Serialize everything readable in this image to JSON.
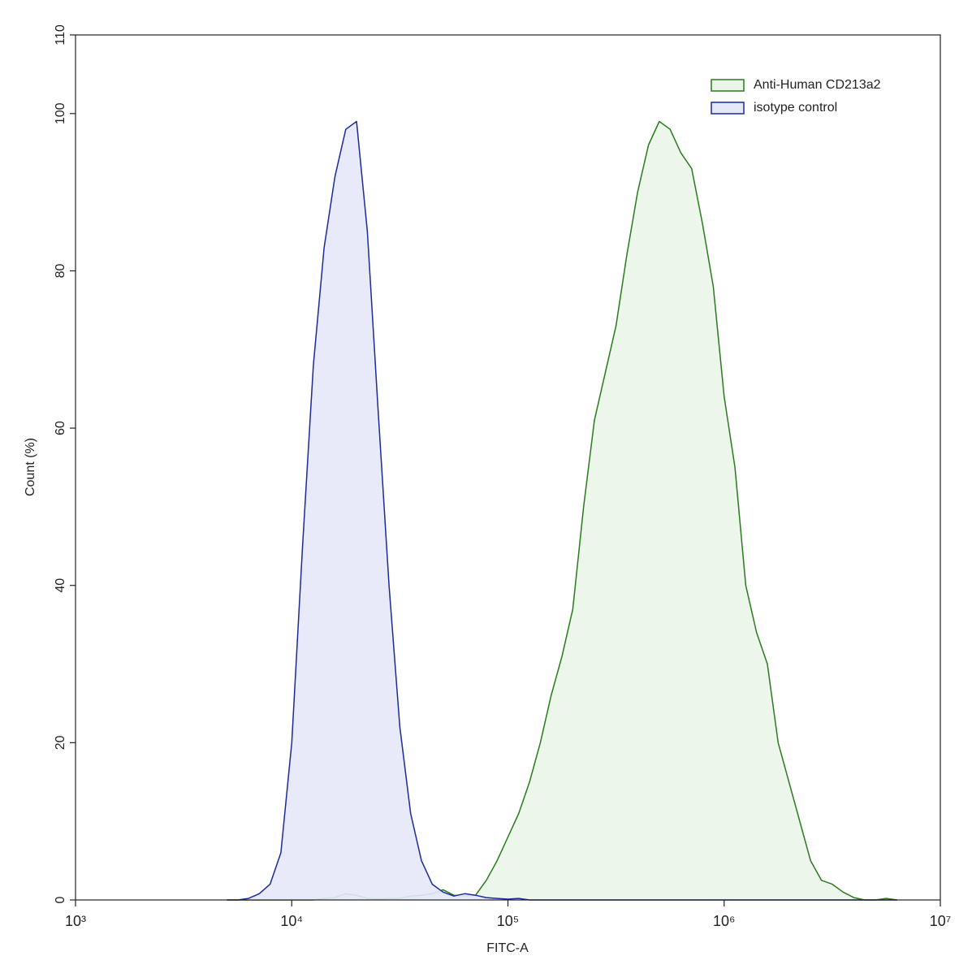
{
  "chart_data": {
    "type": "area",
    "x_label": "FITC-A",
    "y_label": "Count  (%)",
    "xscale": "log",
    "xlim": [
      1000,
      10000000
    ],
    "xticks": [
      {
        "value": 1000,
        "label": "10³"
      },
      {
        "value": 10000,
        "label": "10⁴"
      },
      {
        "value": 100000,
        "label": "10⁵"
      },
      {
        "value": 1000000,
        "label": "10⁶"
      },
      {
        "value": 10000000,
        "label": "10⁷"
      }
    ],
    "ylim": [
      0,
      110
    ],
    "yticks": [
      0,
      20,
      40,
      60,
      80,
      100,
      110
    ],
    "legend": "top-right",
    "x": [
      5012,
      5623,
      6310,
      7079,
      7943,
      8913,
      10000,
      11220,
      12589,
      14125,
      15849,
      17783,
      19953,
      22387,
      25119,
      28184,
      31623,
      35481,
      39811,
      44668,
      50119,
      56234,
      63096,
      70795,
      79433,
      89125,
      100000,
      112202,
      125893,
      141254,
      158489,
      177828,
      199526,
      223872,
      251189,
      281838,
      316228,
      354813,
      398107,
      446684,
      501187,
      562341,
      630957,
      707946,
      794328,
      891251,
      1000000,
      1122018,
      1258925,
      1412538,
      1584893,
      1778279,
      1995262,
      2238721,
      2511886,
      2818383,
      3162278,
      3548134,
      3981072,
      4466836,
      5011872,
      5623413,
      6309573
    ],
    "series": [
      {
        "name": "Anti-Human CD213a2",
        "color": "#2a7a1e",
        "fill": "#eaf5e8",
        "values": [
          0,
          0,
          0,
          0,
          0,
          0,
          0,
          0,
          0,
          0.2,
          0.3,
          0.8,
          0.6,
          0.2,
          0.1,
          0.2,
          0.2,
          0.5,
          0.6,
          0.8,
          1.3,
          0.6,
          0.5,
          0.6,
          2.5,
          5,
          8,
          11,
          15,
          20,
          26,
          31,
          37,
          50,
          61,
          67,
          73,
          82,
          90,
          96,
          99,
          98,
          95,
          93,
          86,
          78,
          64,
          55,
          40,
          34,
          30,
          20,
          15,
          10,
          5,
          2.5,
          2,
          1,
          0.3,
          0,
          0,
          0.2,
          0
        ]
      },
      {
        "name": "isotype control",
        "color": "#1c2a9a",
        "fill": "#e6e8fa",
        "values": [
          0,
          0,
          0.2,
          0.8,
          2,
          6,
          20,
          45,
          68,
          83,
          92,
          98,
          99,
          85,
          62,
          40,
          22,
          11,
          5,
          2,
          1,
          0.5,
          0.8,
          0.6,
          0.3,
          0.2,
          0.1,
          0.2,
          0,
          0,
          0,
          0,
          0,
          0,
          0,
          0,
          0,
          0,
          0,
          0,
          0,
          0,
          0,
          0,
          0,
          0,
          0,
          0,
          0,
          0,
          0,
          0,
          0,
          0,
          0,
          0,
          0,
          0,
          0,
          0,
          0,
          0,
          0
        ]
      }
    ]
  }
}
